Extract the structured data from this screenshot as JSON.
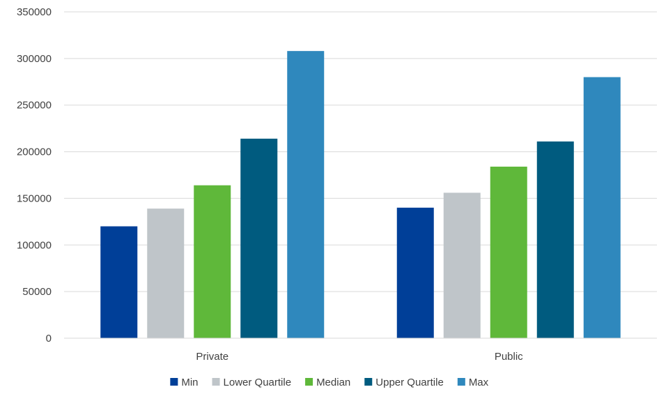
{
  "chart_data": {
    "type": "bar",
    "categories": [
      "Private",
      "Public"
    ],
    "series": [
      {
        "name": "Min",
        "values": [
          120000,
          140000
        ],
        "color": "#003f98"
      },
      {
        "name": "Lower Quartile",
        "values": [
          139000,
          156000
        ],
        "color": "#bfc5c9"
      },
      {
        "name": "Median",
        "values": [
          164000,
          184000
        ],
        "color": "#5fb83a"
      },
      {
        "name": "Upper Quartile",
        "values": [
          214000,
          211000
        ],
        "color": "#005b7f"
      },
      {
        "name": "Max",
        "values": [
          308000,
          280000
        ],
        "color": "#2f88bd"
      }
    ],
    "ylim": [
      0,
      350000
    ],
    "yticks": [
      0,
      50000,
      100000,
      150000,
      200000,
      250000,
      300000,
      350000
    ],
    "ytick_labels": [
      "0",
      "50000",
      "100000",
      "150000",
      "200000",
      "250000",
      "300000",
      "350000"
    ],
    "grid": true,
    "legend_position": "bottom"
  }
}
